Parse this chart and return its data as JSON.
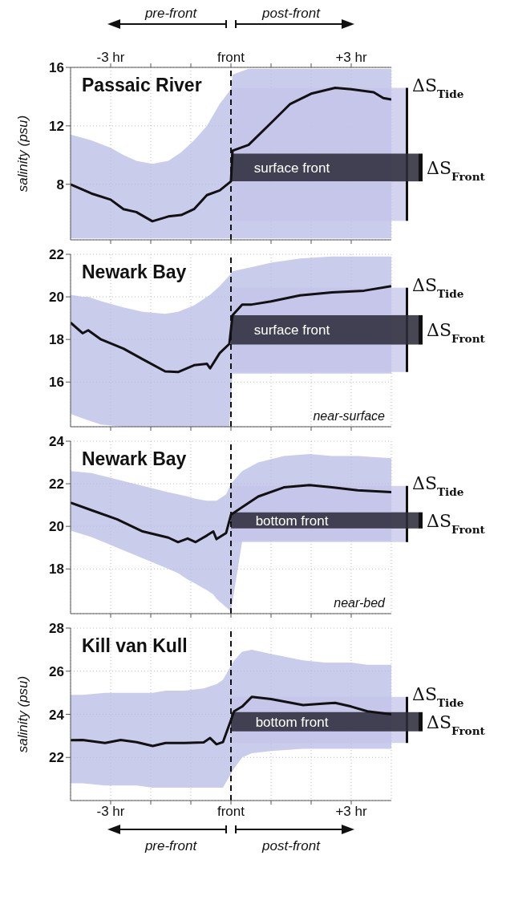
{
  "chart_data": [
    {
      "type": "line",
      "title": "Passaic River",
      "ylabel": "salinity (psu)",
      "xlim": [
        -4,
        4
      ],
      "ylim": [
        4.2,
        16
      ],
      "yticks": [
        8,
        12,
        16
      ],
      "xticks": [
        {
          "value": -3,
          "label": null
        },
        {
          "value": -2,
          "label": null
        },
        {
          "value": -1,
          "label": null
        },
        {
          "value": 0,
          "label": null
        },
        {
          "value": 1,
          "label": null
        },
        {
          "value": 2,
          "label": null
        },
        {
          "value": 3,
          "label": null
        }
      ],
      "x2lim": [
        -4,
        4
      ],
      "x2ticks": [
        {
          "value": -3,
          "label": "-3 hr"
        },
        {
          "value": -2,
          "label": null
        },
        {
          "value": -1,
          "label": null
        },
        {
          "value": 0,
          "label": "front"
        },
        {
          "value": 1,
          "label": null
        },
        {
          "value": 2,
          "label": null
        },
        {
          "value": 3,
          "label": "+3 hr"
        }
      ],
      "tick_labels": "y",
      "grid": true,
      "line_style": "solid",
      "x": [
        -4,
        -3.48,
        -3,
        -2.68,
        -2.36,
        -1.96,
        -1.56,
        -1.24,
        -0.92,
        -0.6,
        -0.28,
        0,
        0.04,
        0.44,
        1,
        1.48,
        2,
        2.6,
        3,
        3.56,
        3.8,
        4
      ],
      "series": [
        {
          "color": "#111111",
          "values": [
            8.0,
            7.37,
            6.95,
            6.3,
            6.1,
            5.47,
            5.8,
            5.9,
            6.3,
            7.26,
            7.58,
            8.2,
            10.3,
            10.7,
            12.2,
            13.5,
            14.2,
            14.6,
            14.5,
            14.3,
            13.9,
            13.8
          ],
          "lower": [
            4.3,
            4.3,
            4.3,
            4.3,
            4.3,
            4.3,
            4.3,
            4.3,
            4.3,
            4.3,
            4.3,
            4.3,
            4.3,
            4.3,
            4.3,
            4.3,
            4.3,
            4.3,
            4.3,
            4.3,
            4.3,
            4.3
          ],
          "upper": [
            11.4,
            11,
            10.5,
            10,
            9.6,
            9.4,
            9.6,
            10.2,
            11,
            12,
            13.5,
            14.5,
            15.5,
            15.9,
            15.9,
            15.9,
            15.9,
            15.9,
            15.9,
            15.9,
            15.9,
            15.9
          ]
        }
      ],
      "ref_lines": [
        {
          "axis": "x",
          "value": 0,
          "color": "#111111",
          "line_style": "dashed"
        }
      ],
      "bands": [
        {
          "axis": "y",
          "from": 5.5,
          "to": 14.6,
          "label": "ΔS$_{Tide}$",
          "color": "#c4c4ea"
        },
        {
          "axis": "y",
          "from": 8.2,
          "to": 10.1,
          "label": "ΔS$_{Front}$",
          "color": "#2e2e3c"
        }
      ],
      "annotations": [
        "surface front",
        "pre-front",
        "post-front"
      ]
    },
    {
      "type": "line",
      "title": "Newark Bay",
      "xlim": [
        -4,
        4
      ],
      "ylim": [
        13.9,
        22
      ],
      "yticks": [
        16,
        18,
        20,
        22
      ],
      "xticks": [
        {
          "value": -3,
          "label": null
        },
        {
          "value": -2,
          "label": null
        },
        {
          "value": -1,
          "label": null
        },
        {
          "value": 0,
          "label": null
        },
        {
          "value": 1,
          "label": null
        },
        {
          "value": 2,
          "label": null
        },
        {
          "value": 3,
          "label": null
        }
      ],
      "tick_labels": "y",
      "grid": true,
      "line_style": "solid",
      "x": [
        -4,
        -3.7,
        -3.56,
        -3.24,
        -2.68,
        -2.2,
        -1.64,
        -1.32,
        -0.92,
        -0.6,
        -0.52,
        -0.28,
        -0.04,
        0.04,
        0.28,
        0.52,
        1,
        1.72,
        2.52,
        3.32,
        4
      ],
      "series": [
        {
          "color": "#111111",
          "values": [
            18.79,
            18.29,
            18.43,
            18.0,
            17.57,
            17.07,
            16.5,
            16.47,
            16.79,
            16.86,
            16.64,
            17.36,
            17.79,
            19.14,
            19.64,
            19.64,
            19.79,
            20.07,
            20.21,
            20.29,
            20.5
          ],
          "lower": [
            14.5,
            14.3,
            14.2,
            14,
            13.9,
            13.9,
            13.9,
            13.9,
            13.9,
            13.9,
            13.9,
            13.9,
            13.9,
            16.4,
            16.4,
            16.4,
            16.4,
            16.4,
            16.4,
            16.4,
            16.4
          ],
          "upper": [
            20.1,
            20,
            20,
            19.8,
            19.5,
            19.3,
            19.2,
            19.3,
            19.6,
            20,
            20.1,
            20.5,
            21,
            21.2,
            21.3,
            21.4,
            21.6,
            21.8,
            21.9,
            21.9,
            21.9
          ]
        }
      ],
      "ref_lines": [
        {
          "axis": "x",
          "value": 0,
          "color": "#111111",
          "line_style": "dashed"
        }
      ],
      "bands": [
        {
          "axis": "y",
          "from": 16.47,
          "to": 20.43,
          "label": "ΔS$_{Tide}$",
          "color": "#c4c4ea"
        },
        {
          "axis": "y",
          "from": 17.76,
          "to": 19.14,
          "label": "ΔS$_{Front}$",
          "color": "#2e2e3c"
        }
      ],
      "annotations": [
        "surface front",
        "near-surface"
      ]
    },
    {
      "type": "line",
      "title": "Newark Bay",
      "xlim": [
        -4,
        4
      ],
      "ylim": [
        15.9,
        24
      ],
      "yticks": [
        18,
        20,
        22,
        24
      ],
      "xticks": [
        {
          "value": -3,
          "label": null
        },
        {
          "value": -2,
          "label": null
        },
        {
          "value": -1,
          "label": null
        },
        {
          "value": 0,
          "label": null
        },
        {
          "value": 1,
          "label": null
        },
        {
          "value": 2,
          "label": null
        },
        {
          "value": 3,
          "label": null
        }
      ],
      "tick_labels": "y",
      "grid": true,
      "line_style": "solid",
      "x": [
        -4,
        -3.48,
        -2.84,
        -2.2,
        -1.56,
        -1.32,
        -1.08,
        -0.88,
        -0.6,
        -0.44,
        -0.36,
        -0.12,
        0,
        0.28,
        0.68,
        1.32,
        1.96,
        2.52,
        3.16,
        4
      ],
      "series": [
        {
          "color": "#111111",
          "values": [
            21.11,
            20.76,
            20.33,
            19.76,
            19.47,
            19.26,
            19.43,
            19.26,
            19.57,
            19.76,
            19.4,
            19.69,
            20.54,
            20.9,
            21.4,
            21.83,
            21.94,
            21.83,
            21.69,
            21.61
          ],
          "lower": [
            19.8,
            19.5,
            19,
            18.5,
            18,
            17.8,
            17.5,
            17.3,
            17,
            16.8,
            16.6,
            16.2,
            16,
            19.3,
            19.3,
            19.3,
            19.3,
            19.3,
            19.3,
            19.3
          ],
          "upper": [
            22.6,
            22.5,
            22.2,
            21.9,
            21.6,
            21.5,
            21.4,
            21.3,
            21.2,
            21.2,
            21.2,
            21.5,
            22,
            22.6,
            23,
            23.3,
            23.4,
            23.3,
            23.3,
            23.2
          ]
        }
      ],
      "ref_lines": [
        {
          "axis": "x",
          "value": 0,
          "color": "#111111",
          "line_style": "dashed"
        }
      ],
      "bands": [
        {
          "axis": "y",
          "from": 19.26,
          "to": 21.9,
          "label": "ΔS$_{Tide}$",
          "color": "#c4c4ea"
        },
        {
          "axis": "y",
          "from": 19.9,
          "to": 20.66,
          "label": "ΔS$_{Front}$",
          "color": "#2e2e3c"
        }
      ],
      "annotations": [
        "bottom front",
        "near-bed"
      ]
    },
    {
      "type": "line",
      "title": "Kill van Kull",
      "ylabel": "salinity (psu)",
      "xlim": [
        -4,
        4
      ],
      "ylim": [
        20,
        28
      ],
      "yticks": [
        22,
        24,
        26,
        28
      ],
      "xticks": [
        {
          "value": -3,
          "label": "-3 hr"
        },
        {
          "value": -2,
          "label": null
        },
        {
          "value": -1,
          "label": null
        },
        {
          "value": 0,
          "label": "front"
        },
        {
          "value": 1,
          "label": null
        },
        {
          "value": 2,
          "label": null
        },
        {
          "value": 3,
          "label": "+3 hr"
        }
      ],
      "grid": true,
      "line_style": "solid",
      "x": [
        -4,
        -3.7,
        -3.14,
        -2.75,
        -2.35,
        -1.95,
        -1.63,
        -1.16,
        -0.68,
        -0.52,
        -0.36,
        -0.2,
        0.08,
        0.28,
        0.52,
        1,
        1.8,
        2.35,
        2.6,
        3,
        3.4,
        4
      ],
      "series": [
        {
          "color": "#111111",
          "values": [
            22.8,
            22.81,
            22.67,
            22.81,
            22.71,
            22.53,
            22.67,
            22.67,
            22.7,
            22.9,
            22.61,
            22.71,
            24.14,
            24.36,
            24.81,
            24.71,
            24.43,
            24.5,
            24.53,
            24.36,
            24.14,
            24.0
          ],
          "lower": [
            20.8,
            20.8,
            20.7,
            20.7,
            20.7,
            20.6,
            20.6,
            20.6,
            20.6,
            20.6,
            20.6,
            20.6,
            21.5,
            22,
            22.2,
            22.3,
            22.4,
            22.4,
            22.4,
            22.4,
            22.4,
            22.4
          ],
          "upper": [
            24.9,
            24.9,
            25,
            25,
            25,
            25,
            25.1,
            25.1,
            25.2,
            25.3,
            25.4,
            25.6,
            26.5,
            26.9,
            27,
            26.8,
            26.5,
            26.4,
            26.4,
            26.4,
            26.3,
            26.3
          ]
        }
      ],
      "ref_lines": [
        {
          "axis": "x",
          "value": 0,
          "color": "#111111",
          "line_style": "dashed"
        }
      ],
      "bands": [
        {
          "axis": "y",
          "from": 22.67,
          "to": 24.81,
          "label": "ΔS$_{Tide}$",
          "color": "#c4c4ea"
        },
        {
          "axis": "y",
          "from": 23.21,
          "to": 24.1,
          "label": "ΔS$_{Front}$",
          "color": "#2e2e3c"
        }
      ],
      "annotations": [
        "bottom front",
        "pre-front",
        "post-front"
      ]
    }
  ]
}
